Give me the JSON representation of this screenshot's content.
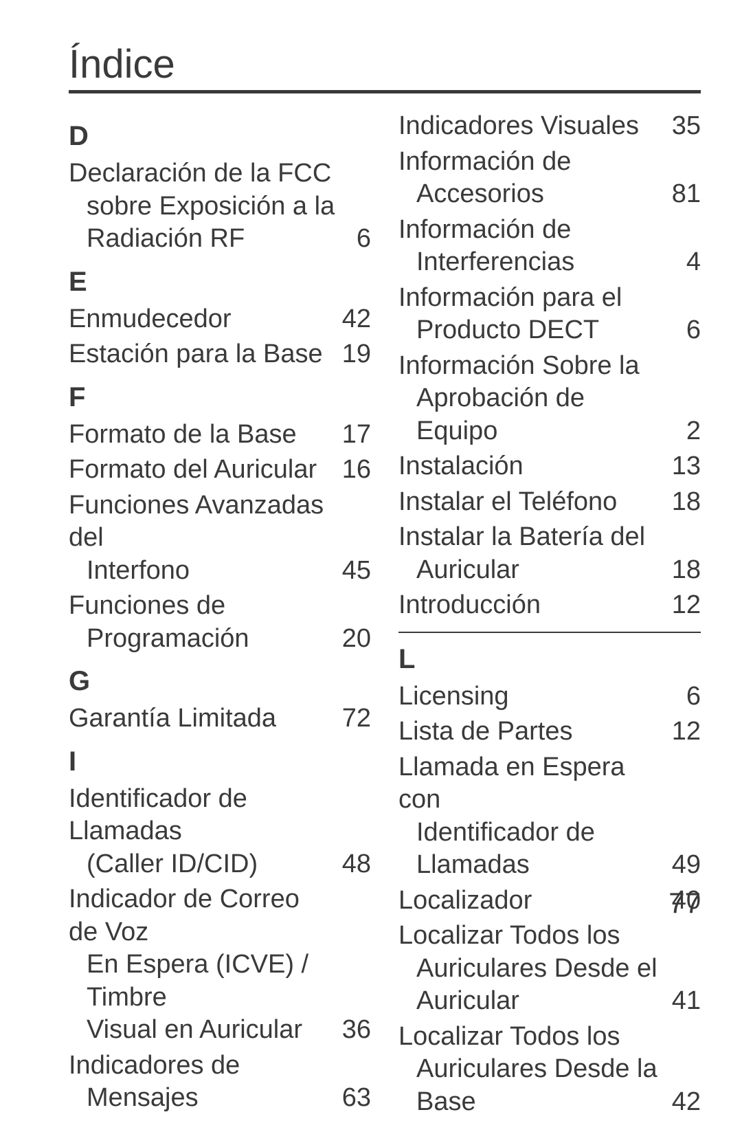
{
  "title": "Índice",
  "page_number": "77",
  "colors": {
    "text": "#3a3a3a",
    "background": "#ffffff",
    "rule": "#3a3a3a"
  },
  "typography": {
    "title_fontsize_pt": 44,
    "letter_fontsize_pt": 30,
    "entry_fontsize_pt": 28,
    "pagenum_fontsize_pt": 32,
    "font_family": "sans-serif"
  },
  "left_column": [
    {
      "type": "letter",
      "label": "D"
    },
    {
      "type": "entry",
      "lines": [
        "Declaración de la FCC",
        "sobre Exposición a la",
        "Radiación RF"
      ],
      "page": "6"
    },
    {
      "type": "letter",
      "label": "E"
    },
    {
      "type": "entry",
      "lines": [
        "Enmudecedor"
      ],
      "page": "42"
    },
    {
      "type": "entry",
      "lines": [
        "Estación para la Base"
      ],
      "page": "19"
    },
    {
      "type": "letter",
      "label": "F"
    },
    {
      "type": "entry",
      "lines": [
        "Formato de la Base"
      ],
      "page": "17"
    },
    {
      "type": "entry",
      "lines": [
        "Formato del Auricular"
      ],
      "page": "16"
    },
    {
      "type": "entry",
      "lines": [
        "Funciones Avanzadas del",
        "Interfono"
      ],
      "page": "45"
    },
    {
      "type": "entry",
      "lines": [
        "Funciones de",
        "Programación"
      ],
      "page": "20"
    },
    {
      "type": "letter",
      "label": "G"
    },
    {
      "type": "entry",
      "lines": [
        "Garantía Limitada"
      ],
      "page": "72"
    },
    {
      "type": "letter",
      "label": "I"
    },
    {
      "type": "entry",
      "lines": [
        "Identificador de Llamadas",
        "(Caller ID/CID)"
      ],
      "page": "48"
    },
    {
      "type": "entry",
      "lines": [
        "Indicador de Correo de Voz",
        "En Espera (ICVE) / Timbre",
        "Visual en Auricular"
      ],
      "page": "36"
    },
    {
      "type": "entry",
      "lines": [
        "Indicadores de",
        "Mensajes"
      ],
      "page": "63"
    }
  ],
  "right_column": [
    {
      "type": "entry",
      "lines": [
        "Indicadores Visuales"
      ],
      "page": "35"
    },
    {
      "type": "entry",
      "lines": [
        "Información de",
        "Accesorios"
      ],
      "page": "81"
    },
    {
      "type": "entry",
      "lines": [
        "Información de",
        "Interferencias"
      ],
      "page": "4"
    },
    {
      "type": "entry",
      "lines": [
        "Información para el",
        "Producto DECT"
      ],
      "page": "6"
    },
    {
      "type": "entry",
      "lines": [
        "Información Sobre la",
        "Aprobación de Equipo"
      ],
      "page": "2"
    },
    {
      "type": "entry",
      "lines": [
        "Instalación"
      ],
      "page": "13"
    },
    {
      "type": "entry",
      "lines": [
        "Instalar el Teléfono"
      ],
      "page": "18"
    },
    {
      "type": "entry",
      "lines": [
        "Instalar la Batería del",
        "Auricular"
      ],
      "page": "18"
    },
    {
      "type": "entry",
      "lines": [
        "Introducción"
      ],
      "page": "12"
    },
    {
      "type": "rule"
    },
    {
      "type": "letter",
      "label": "L"
    },
    {
      "type": "entry",
      "lines": [
        "Licensing"
      ],
      "page": "6"
    },
    {
      "type": "entry",
      "lines": [
        "Lista de Partes"
      ],
      "page": "12"
    },
    {
      "type": "entry",
      "lines": [
        "Llamada en Espera con",
        "Identificador de",
        "Llamadas"
      ],
      "page": "49"
    },
    {
      "type": "entry",
      "lines": [
        "Localizador"
      ],
      "page": "40"
    },
    {
      "type": "entry",
      "lines": [
        "Localizar Todos los",
        "Auriculares Desde el",
        "Auricular"
      ],
      "page": "41"
    },
    {
      "type": "entry",
      "lines": [
        "Localizar Todos los",
        "Auriculares Desde la",
        "Base"
      ],
      "page": "42"
    }
  ]
}
